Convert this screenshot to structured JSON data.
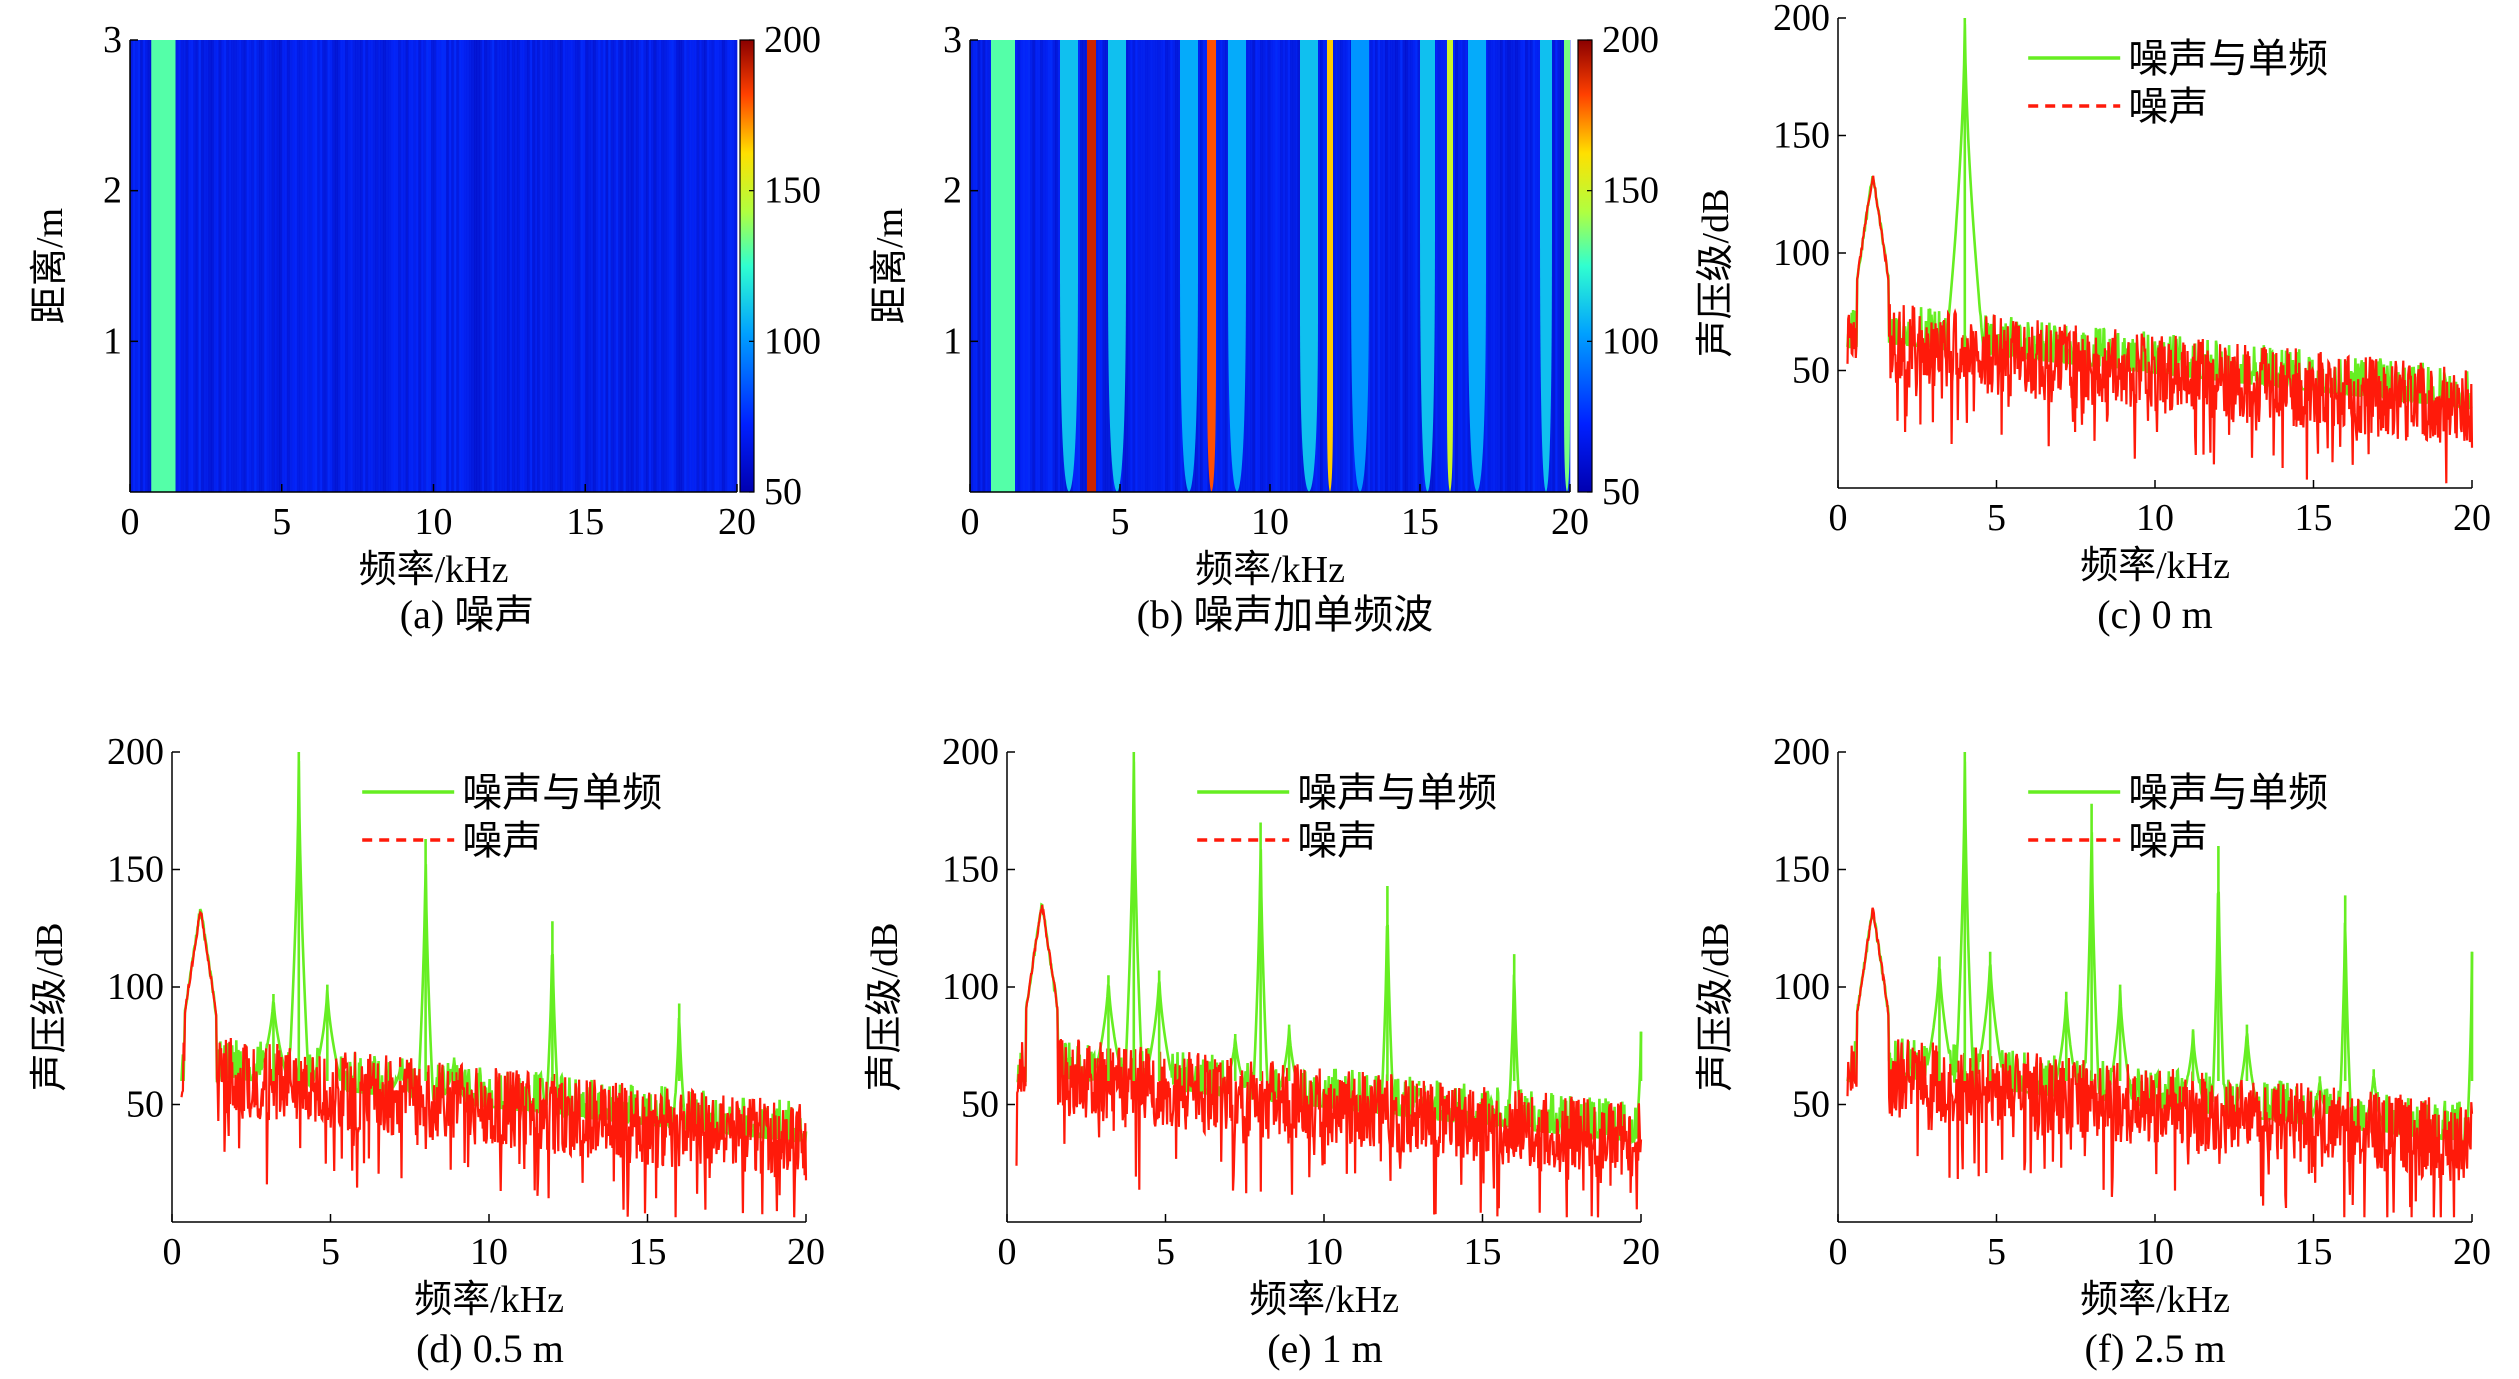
{
  "colors": {
    "noise_plus_tone": "#66ee22",
    "noise": "#ff1a0a",
    "heatmap_background": "#0b2ef0",
    "axis": "#000000"
  },
  "chart_data": [
    {
      "panel": "a",
      "type": "heatmap",
      "caption": "(a) 噪声",
      "xlabel": "频率/kHz",
      "ylabel": "距离/m",
      "x_ticks": [
        "0",
        "5",
        "10",
        "15",
        "20"
      ],
      "y_ticks": [
        "1",
        "2",
        "3"
      ],
      "xlim": [
        0,
        20
      ],
      "ylim": [
        0,
        3
      ],
      "colorbar": {
        "ticks": [
          "50",
          "100",
          "150",
          "200"
        ],
        "range": [
          50,
          200
        ]
      },
      "stripes": [
        {
          "f0": 0.7,
          "f1": 1.5,
          "level": 130,
          "taper": 0
        }
      ]
    },
    {
      "panel": "b",
      "type": "heatmap",
      "caption": "(b) 噪声加单频波",
      "xlabel": "频率/kHz",
      "ylabel": "距离/m",
      "x_ticks": [
        "0",
        "5",
        "10",
        "15",
        "20"
      ],
      "y_ticks": [
        "1",
        "2",
        "3"
      ],
      "xlim": [
        0,
        20
      ],
      "ylim": [
        0,
        3
      ],
      "colorbar": {
        "ticks": [
          "50",
          "100",
          "150",
          "200"
        ],
        "range": [
          50,
          200
        ]
      },
      "stripes": [
        {
          "f0": 0.7,
          "f1": 1.5,
          "level": 130,
          "taper": 0
        },
        {
          "f0": 3.0,
          "f1": 3.6,
          "level": 110,
          "taper": 0.5
        },
        {
          "f0": 3.9,
          "f1": 4.2,
          "level": 190,
          "taper": 0
        },
        {
          "f0": 4.6,
          "f1": 5.2,
          "level": 110,
          "taper": 0.5
        },
        {
          "f0": 7.0,
          "f1": 7.6,
          "level": 105,
          "taper": 0.5
        },
        {
          "f0": 7.9,
          "f1": 8.2,
          "level": 180,
          "taper": 0.3
        },
        {
          "f0": 8.6,
          "f1": 9.2,
          "level": 105,
          "taper": 0.5
        },
        {
          "f0": 11.0,
          "f1": 11.6,
          "level": 110,
          "taper": 0.4
        },
        {
          "f0": 11.9,
          "f1": 12.1,
          "level": 165,
          "taper": 0.2
        },
        {
          "f0": 12.7,
          "f1": 13.3,
          "level": 100,
          "taper": 0.5
        },
        {
          "f0": 15.0,
          "f1": 15.5,
          "level": 110,
          "taper": 0.6
        },
        {
          "f0": 15.9,
          "f1": 16.1,
          "level": 150,
          "taper": 0.2
        },
        {
          "f0": 16.6,
          "f1": 17.2,
          "level": 105,
          "taper": 0.5
        },
        {
          "f0": 19.0,
          "f1": 19.4,
          "level": 110,
          "taper": 0.6
        },
        {
          "f0": 19.8,
          "f1": 20.0,
          "level": 135,
          "taper": 0.2
        }
      ]
    },
    {
      "panel": "c",
      "type": "line",
      "caption": "(c) 0 m",
      "xlabel": "频率/kHz",
      "ylabel": "声压级/dB",
      "x_ticks": [
        "0",
        "5",
        "10",
        "15",
        "20"
      ],
      "y_ticks": [
        "50",
        "100",
        "150",
        "200"
      ],
      "xlim": [
        0,
        20
      ],
      "ylim": [
        0,
        200
      ],
      "legend": [
        "噪声与单频",
        "噪声"
      ],
      "series": [
        {
          "name": "噪声与单频",
          "peaks": [
            {
              "f": 4.0,
              "db": 200,
              "width": 0.15
            }
          ]
        },
        {
          "name": "噪声",
          "peaks": []
        }
      ],
      "low_freq_hump": {
        "f": 1.1,
        "db": 135
      }
    },
    {
      "panel": "d",
      "type": "line",
      "caption": "(d) 0.5 m",
      "xlabel": "频率/kHz",
      "ylabel": "声压级/dB",
      "x_ticks": [
        "0",
        "5",
        "10",
        "15",
        "20"
      ],
      "y_ticks": [
        "50",
        "100",
        "150",
        "200"
      ],
      "xlim": [
        0,
        20
      ],
      "ylim": [
        0,
        200
      ],
      "legend": [
        "噪声与单频",
        "噪声"
      ],
      "series": [
        {
          "name": "噪声与单频",
          "peaks": [
            {
              "f": 3.2,
              "db": 97,
              "width": 0.12
            },
            {
              "f": 4.0,
              "db": 200,
              "width": 0.08
            },
            {
              "f": 4.9,
              "db": 101,
              "width": 0.12
            },
            {
              "f": 7.2,
              "db": 66,
              "width": 0.1
            },
            {
              "f": 8.0,
              "db": 163,
              "width": 0.06
            },
            {
              "f": 8.9,
              "db": 70,
              "width": 0.1
            },
            {
              "f": 12.0,
              "db": 128,
              "width": 0.05
            },
            {
              "f": 16.0,
              "db": 93,
              "width": 0.05
            }
          ]
        },
        {
          "name": "噪声",
          "peaks": []
        }
      ],
      "low_freq_hump": {
        "f": 0.9,
        "db": 135
      }
    },
    {
      "panel": "e",
      "type": "line",
      "caption": "(e) 1 m",
      "xlabel": "频率/kHz",
      "ylabel": "声压级/dB",
      "x_ticks": [
        "0",
        "5",
        "10",
        "15",
        "20"
      ],
      "y_ticks": [
        "50",
        "100",
        "150",
        "200"
      ],
      "xlim": [
        0,
        20
      ],
      "ylim": [
        0,
        200
      ],
      "legend": [
        "噪声与单频",
        "噪声"
      ],
      "series": [
        {
          "name": "噪声与单频",
          "peaks": [
            {
              "f": 3.2,
              "db": 105,
              "width": 0.12
            },
            {
              "f": 4.0,
              "db": 200,
              "width": 0.07
            },
            {
              "f": 4.8,
              "db": 107,
              "width": 0.12
            },
            {
              "f": 7.2,
              "db": 80,
              "width": 0.1
            },
            {
              "f": 8.0,
              "db": 170,
              "width": 0.06
            },
            {
              "f": 8.9,
              "db": 84,
              "width": 0.1
            },
            {
              "f": 12.0,
              "db": 143,
              "width": 0.05
            },
            {
              "f": 13.0,
              "db": 58,
              "width": 0.08
            },
            {
              "f": 16.0,
              "db": 114,
              "width": 0.05
            },
            {
              "f": 20.0,
              "db": 81,
              "width": 0.04
            }
          ]
        },
        {
          "name": "噪声",
          "peaks": []
        }
      ],
      "low_freq_hump": {
        "f": 1.1,
        "db": 137
      }
    },
    {
      "panel": "f",
      "type": "line",
      "caption": "(f) 2.5 m",
      "xlabel": "频率/kHz",
      "ylabel": "声压级/dB",
      "x_ticks": [
        "0",
        "5",
        "10",
        "15",
        "20"
      ],
      "y_ticks": [
        "50",
        "100",
        "150",
        "200"
      ],
      "xlim": [
        0,
        20
      ],
      "ylim": [
        0,
        200
      ],
      "legend": [
        "噪声与单频",
        "噪声"
      ],
      "series": [
        {
          "name": "噪声与单频",
          "peaks": [
            {
              "f": 3.2,
              "db": 113,
              "width": 0.12
            },
            {
              "f": 4.0,
              "db": 200,
              "width": 0.07
            },
            {
              "f": 4.8,
              "db": 115,
              "width": 0.12
            },
            {
              "f": 7.2,
              "db": 98,
              "width": 0.1
            },
            {
              "f": 8.0,
              "db": 178,
              "width": 0.06
            },
            {
              "f": 8.9,
              "db": 101,
              "width": 0.1
            },
            {
              "f": 11.2,
              "db": 82,
              "width": 0.1
            },
            {
              "f": 12.0,
              "db": 160,
              "width": 0.05
            },
            {
              "f": 12.9,
              "db": 84,
              "width": 0.1
            },
            {
              "f": 15.2,
              "db": 62,
              "width": 0.08
            },
            {
              "f": 16.0,
              "db": 139,
              "width": 0.05
            },
            {
              "f": 16.9,
              "db": 65,
              "width": 0.08
            },
            {
              "f": 20.0,
              "db": 115,
              "width": 0.04
            }
          ]
        },
        {
          "name": "噪声",
          "peaks": []
        }
      ],
      "low_freq_hump": {
        "f": 1.1,
        "db": 135
      }
    }
  ]
}
